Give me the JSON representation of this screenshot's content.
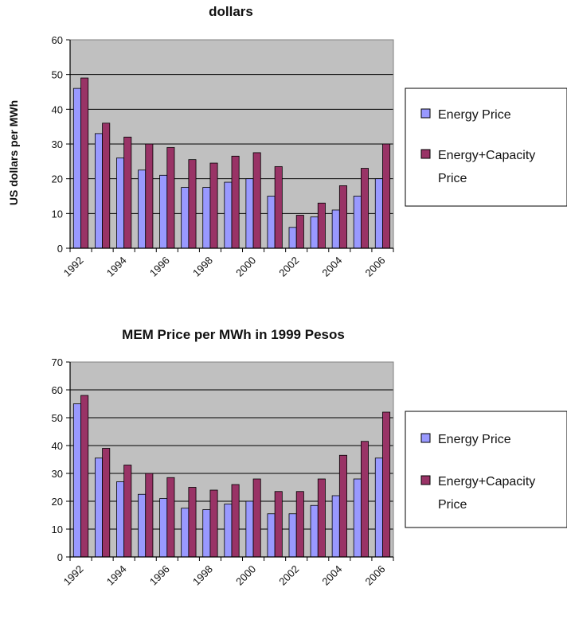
{
  "colors": {
    "energy": "#9999ff",
    "energy_capacity": "#993366",
    "plot_bg": "#c0c0c0",
    "grid": "#000000"
  },
  "chart_data": [
    {
      "type": "bar",
      "title": "dollars",
      "ylabel": "US dollars per MWh",
      "ylim": [
        0,
        60
      ],
      "yticks": [
        "0",
        "10",
        "20",
        "30",
        "40",
        "50",
        "60"
      ],
      "categories": [
        "1992",
        "1993",
        "1994",
        "1995",
        "1996",
        "1997",
        "1998",
        "1999",
        "2000",
        "2001",
        "2002",
        "2003",
        "2004",
        "2005",
        "2006"
      ],
      "xtick_labels": [
        "1992",
        "1994",
        "1996",
        "1998",
        "2000",
        "2002",
        "2004",
        "2006"
      ],
      "grid": true,
      "legend_position": "right",
      "series": [
        {
          "name": "Energy Price",
          "values": [
            46,
            33,
            26,
            22.5,
            21,
            17.5,
            17.5,
            19,
            20,
            15,
            6,
            9,
            11,
            15,
            20
          ]
        },
        {
          "name": "Energy+Capacity Price",
          "values": [
            49,
            36,
            32,
            30,
            29,
            25.5,
            24.5,
            26.5,
            27.5,
            23.5,
            9.5,
            13,
            18,
            23,
            30
          ]
        }
      ]
    },
    {
      "type": "bar",
      "title": "MEM Price per MWh  in 1999 Pesos",
      "ylabel": "",
      "ylim": [
        0,
        70
      ],
      "yticks": [
        "0",
        "10",
        "20",
        "30",
        "40",
        "50",
        "60",
        "70"
      ],
      "categories": [
        "1992",
        "1993",
        "1994",
        "1995",
        "1996",
        "1997",
        "1998",
        "1999",
        "2000",
        "2001",
        "2002",
        "2003",
        "2004",
        "2005",
        "2006"
      ],
      "xtick_labels": [
        "1992",
        "1994",
        "1996",
        "1998",
        "2000",
        "2002",
        "2004",
        "2006"
      ],
      "grid": true,
      "legend_position": "right",
      "series": [
        {
          "name": "Energy Price",
          "values": [
            55,
            35.5,
            27,
            22.5,
            21,
            17.5,
            17,
            19,
            20,
            15.5,
            15.5,
            18.5,
            22,
            28,
            35.5
          ]
        },
        {
          "name": "Energy+Capacity Price",
          "values": [
            58,
            39,
            33,
            30,
            28.5,
            25,
            24,
            26,
            28,
            23.5,
            23.5,
            28,
            36.5,
            41.5,
            52
          ]
        }
      ]
    }
  ]
}
